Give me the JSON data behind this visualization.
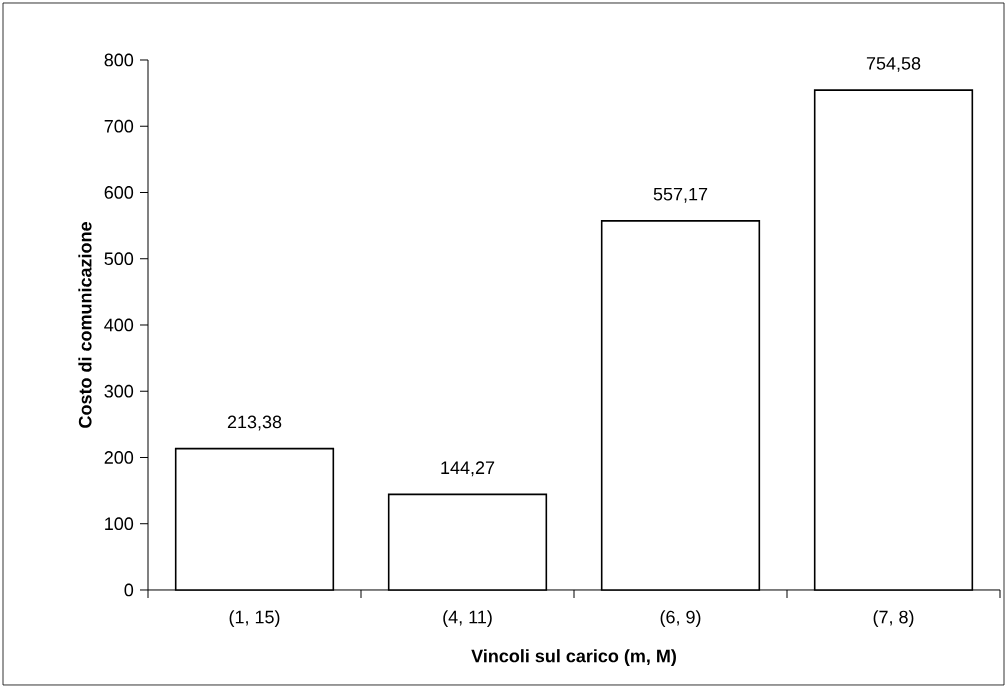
{
  "chart_data": {
    "type": "bar",
    "xlabel": "Vincoli sul carico (m, M)",
    "ylabel": "Costo di comunicazione",
    "categories": [
      "(1, 15)",
      "(4, 11)",
      "(6, 9)",
      "(7, 8)"
    ],
    "values": [
      213.38,
      144.27,
      557.17,
      754.58
    ],
    "value_labels": [
      "213,38",
      "144,27",
      "557,17",
      "754,58"
    ],
    "color": "#ffffff",
    "ylim": [
      0,
      800
    ],
    "yticks": [
      0,
      100,
      200,
      300,
      400,
      500,
      600,
      700,
      800
    ]
  }
}
